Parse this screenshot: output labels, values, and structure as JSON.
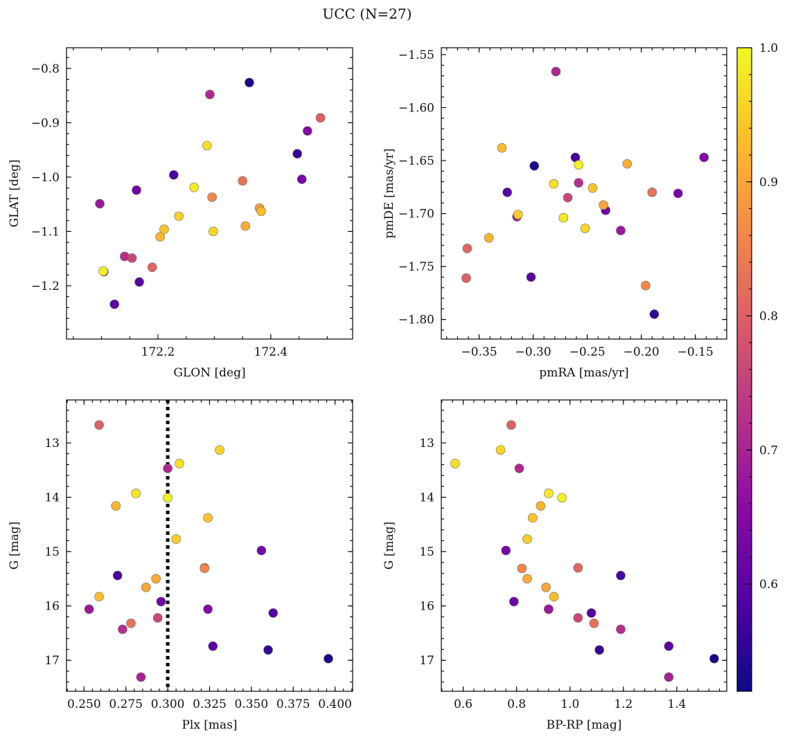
{
  "figure": {
    "title": "UCC (N=27)"
  },
  "chart_data": {
    "type": "scatter",
    "colorbar": {
      "min": 0.52,
      "max": 1.0,
      "ticks": [
        0.6,
        0.7,
        0.8,
        0.9,
        1.0
      ],
      "tick_labels": [
        "0.6",
        "0.7",
        "0.8",
        "0.9",
        "1.0"
      ],
      "colormap": [
        "#0d0887",
        "#5302a3",
        "#8b0aa5",
        "#b83289",
        "#db5c68",
        "#f48849",
        "#febd2a",
        "#f0f921"
      ]
    },
    "points": [
      {
        "glon": 172.362,
        "glat": -0.826,
        "pmra": -0.299,
        "pmde": -1.655,
        "plx": 0.396,
        "g": 16.97,
        "bprp": 1.54,
        "p": 0.53
      },
      {
        "glon": 172.447,
        "glat": -0.957,
        "pmra": -0.188,
        "pmde": -1.795,
        "plx": 0.36,
        "g": 16.81,
        "bprp": 1.11,
        "p": 0.56
      },
      {
        "glon": 172.228,
        "glat": -0.996,
        "pmra": -0.261,
        "pmde": -1.647,
        "plx": 0.27,
        "g": 15.44,
        "bprp": 1.19,
        "p": 0.58
      },
      {
        "glon": 172.167,
        "glat": -1.193,
        "pmra": -0.324,
        "pmde": -1.68,
        "plx": 0.363,
        "g": 16.13,
        "bprp": 1.08,
        "p": 0.59
      },
      {
        "glon": 172.123,
        "glat": -1.234,
        "pmra": -0.302,
        "pmde": -1.76,
        "plx": 0.327,
        "g": 16.74,
        "bprp": 1.37,
        "p": 0.6
      },
      {
        "glon": 172.162,
        "glat": -1.024,
        "pmra": -0.233,
        "pmde": -1.697,
        "plx": 0.296,
        "g": 15.92,
        "bprp": 0.79,
        "p": 0.62
      },
      {
        "glon": 172.455,
        "glat": -1.004,
        "pmra": -0.166,
        "pmde": -1.681,
        "plx": 0.356,
        "g": 14.98,
        "bprp": 0.76,
        "p": 0.63
      },
      {
        "glon": 172.465,
        "glat": -0.915,
        "pmra": -0.142,
        "pmde": -1.647,
        "plx": 0.324,
        "g": 16.06,
        "bprp": 0.92,
        "p": 0.65
      },
      {
        "glon": 172.097,
        "glat": -1.049,
        "pmra": -0.219,
        "pmde": -1.716,
        "plx": 0.253,
        "g": 16.06,
        "bprp": 0.92,
        "p": 0.68
      },
      {
        "glon": 172.292,
        "glat": -0.848,
        "pmra": -0.279,
        "pmde": -1.566,
        "plx": 0.3,
        "g": 13.47,
        "bprp": 0.81,
        "p": 0.71
      },
      {
        "glon": 172.141,
        "glat": -1.146,
        "pmra": -0.258,
        "pmde": -1.671,
        "plx": 0.273,
        "g": 16.43,
        "bprp": 1.19,
        "p": 0.72
      },
      {
        "glon": 172.154,
        "glat": -1.149,
        "pmra": -0.268,
        "pmde": -1.685,
        "plx": 0.294,
        "g": 16.22,
        "bprp": 1.03,
        "p": 0.76
      },
      {
        "glon": 172.488,
        "glat": -0.891,
        "pmra": -0.362,
        "pmde": -1.761,
        "plx": 0.259,
        "g": 12.67,
        "bprp": 0.78,
        "p": 0.8
      },
      {
        "glon": 172.19,
        "glat": -1.166,
        "pmra": -0.361,
        "pmde": -1.733,
        "plx": 0.322,
        "g": 15.3,
        "bprp": 1.03,
        "p": 0.81
      },
      {
        "glon": 172.35,
        "glat": -1.007,
        "pmra": -0.19,
        "pmde": -1.68,
        "plx": 0.278,
        "g": 16.32,
        "bprp": 1.09,
        "p": 0.83
      },
      {
        "glon": 172.296,
        "glat": -1.037,
        "pmra": -0.196,
        "pmde": -1.768,
        "plx": 0.322,
        "g": 15.31,
        "bprp": 0.82,
        "p": 0.86
      },
      {
        "glon": 172.38,
        "glat": -1.057,
        "pmra": -0.235,
        "pmde": -1.692,
        "plx": 0.287,
        "g": 15.66,
        "bprp": 0.91,
        "p": 0.9
      },
      {
        "glon": 172.355,
        "glat": -1.09,
        "pmra": -0.213,
        "pmde": -1.653,
        "plx": 0.293,
        "g": 15.5,
        "bprp": 0.84,
        "p": 0.91
      },
      {
        "glon": 172.204,
        "glat": -1.11,
        "pmra": -0.341,
        "pmde": -1.723,
        "plx": 0.269,
        "g": 14.16,
        "bprp": 0.89,
        "p": 0.92
      },
      {
        "glon": 172.383,
        "glat": -1.063,
        "pmra": -0.329,
        "pmde": -1.638,
        "plx": 0.259,
        "g": 15.83,
        "bprp": 0.94,
        "p": 0.93
      },
      {
        "glon": 172.211,
        "glat": -1.096,
        "pmra": -0.245,
        "pmde": -1.676,
        "plx": 0.324,
        "g": 14.38,
        "bprp": 0.86,
        "p": 0.94
      },
      {
        "glon": 172.237,
        "glat": -1.072,
        "pmra": -0.314,
        "pmde": -1.701,
        "plx": 0.305,
        "g": 14.77,
        "bprp": 0.84,
        "p": 0.95
      },
      {
        "glon": 172.298,
        "glat": -1.1,
        "pmra": -0.252,
        "pmde": -1.714,
        "plx": 0.331,
        "g": 13.13,
        "bprp": 0.74,
        "p": 0.96
      },
      {
        "glon": 172.287,
        "glat": -0.942,
        "pmra": -0.281,
        "pmde": -1.672,
        "plx": 0.307,
        "g": 13.38,
        "bprp": 0.57,
        "p": 0.97
      },
      {
        "glon": 172.264,
        "glat": -1.019,
        "pmra": -0.272,
        "pmde": -1.704,
        "plx": 0.281,
        "g": 13.93,
        "bprp": 0.92,
        "p": 0.98
      },
      {
        "glon": 172.103,
        "glat": -1.173,
        "pmra": -0.258,
        "pmde": -1.654,
        "plx": 0.3,
        "g": 14.01,
        "bprp": 0.97,
        "p": 0.99
      },
      {
        "glon": 172.104,
        "glat": -1.174,
        "pmra": -0.315,
        "pmde": -1.703,
        "plx": 0.284,
        "g": 17.31,
        "bprp": 1.37,
        "p": 0.7
      }
    ],
    "panels": [
      {
        "id": "glon-glat",
        "xkey": "glon",
        "ykey": "glat",
        "xlabel": "GLON [deg]",
        "ylabel": "GLAT [deg]",
        "xlim": [
          172.038,
          172.545
        ],
        "ylim": [
          -1.298,
          -0.762
        ],
        "xticks": [
          172.2,
          172.4
        ],
        "xtick_labels": [
          "172.2",
          "172.4"
        ],
        "yticks": [
          -0.8,
          -0.9,
          -1.0,
          -1.1,
          -1.2
        ],
        "ytick_labels": [
          "−0.8",
          "−0.9",
          "−1.0",
          "−1.1",
          "−1.2"
        ],
        "xminor": 0.05,
        "yminor": 0.02
      },
      {
        "id": "pmra-pmde",
        "xkey": "pmra",
        "ykey": "pmde",
        "xlabel": "pmRA [mas/yr]",
        "ylabel": "pmDE [mas/yr]",
        "xlim": [
          -0.385,
          -0.121
        ],
        "ylim": [
          -1.8185,
          -1.5435
        ],
        "xticks": [
          -0.35,
          -0.3,
          -0.25,
          -0.2,
          -0.15
        ],
        "xtick_labels": [
          "−0.35",
          "−0.30",
          "−0.25",
          "−0.20",
          "−0.15"
        ],
        "yticks": [
          -1.55,
          -1.6,
          -1.65,
          -1.7,
          -1.75,
          -1.8
        ],
        "ytick_labels": [
          "−1.55",
          "−1.60",
          "−1.65",
          "−1.70",
          "−1.75",
          "−1.80"
        ],
        "xminor": 0.01,
        "yminor": 0.01
      },
      {
        "id": "plx-g",
        "xkey": "plx",
        "ykey": "g",
        "xlabel": "Plx [mas]",
        "ylabel": "G [mag]",
        "xlim": [
          0.2395,
          0.4105
        ],
        "ylim": [
          17.57,
          12.21
        ],
        "invert_y": true,
        "xticks": [
          0.25,
          0.275,
          0.3,
          0.325,
          0.35,
          0.375,
          0.4
        ],
        "xtick_labels": [
          "0.250",
          "0.275",
          "0.300",
          "0.325",
          "0.350",
          "0.375",
          "0.400"
        ],
        "yticks": [
          13,
          14,
          15,
          16,
          17
        ],
        "ytick_labels": [
          "13",
          "14",
          "15",
          "16",
          "17"
        ],
        "xminor": 0.005,
        "yminor": 0.2,
        "vline": 0.3
      },
      {
        "id": "bprp-g",
        "xkey": "bprp",
        "ykey": "g",
        "xlabel": "BP-RP [mag]",
        "ylabel": "G [mag]",
        "xlim": [
          0.518,
          1.587
        ],
        "ylim": [
          17.57,
          12.21
        ],
        "invert_y": true,
        "xticks": [
          0.6,
          0.8,
          1.0,
          1.2,
          1.4
        ],
        "xtick_labels": [
          "0.6",
          "0.8",
          "1.0",
          "1.2",
          "1.4"
        ],
        "yticks": [
          13,
          14,
          15,
          16,
          17
        ],
        "ytick_labels": [
          "13",
          "14",
          "15",
          "16",
          "17"
        ],
        "xminor": 0.04,
        "yminor": 0.2
      }
    ]
  }
}
